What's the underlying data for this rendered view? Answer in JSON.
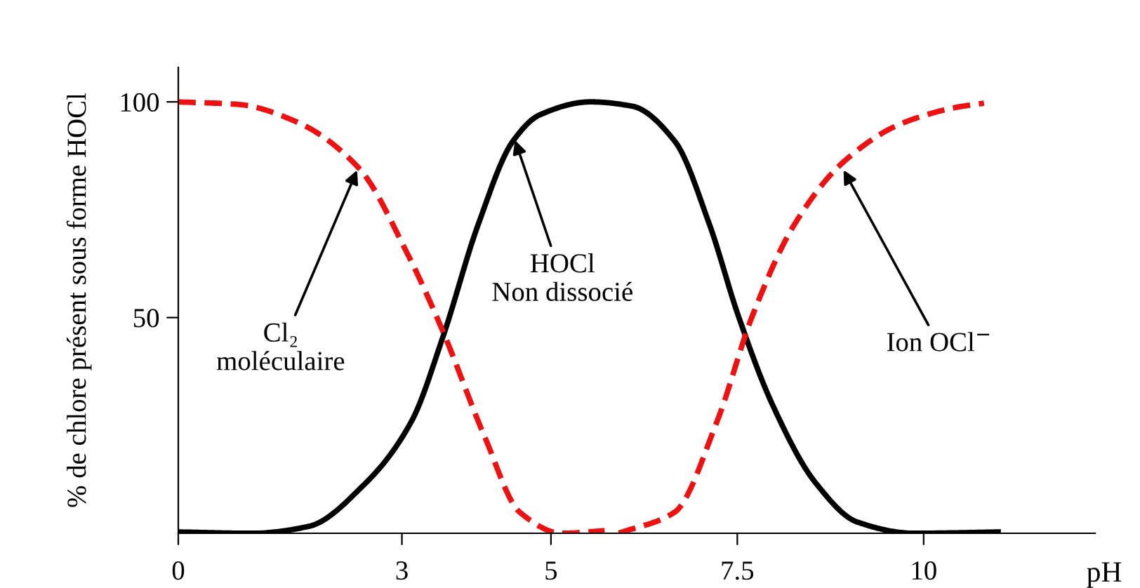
{
  "chart_data": {
    "type": "line",
    "xlabel": "pH",
    "ylabel": "% de chlore présent sous forme HOCl",
    "series": [
      {
        "color": "#000000",
        "line_style": "solid",
        "x": [
          0,
          1.0,
          1.75,
          2.5,
          3.13,
          3.55,
          4.02,
          4.49,
          4.85,
          5.53,
          6.09,
          6.66,
          7.13,
          7.51,
          7.98,
          8.55,
          9.11,
          9.87,
          11.0
        ],
        "values": [
          0.3,
          0,
          1.6,
          11.4,
          26,
          45.5,
          71.4,
          90.9,
          97,
          100,
          99,
          90.9,
          71.4,
          50.6,
          29.5,
          11.7,
          2.6,
          0,
          0.3
        ]
      },
      {
        "color": "#ee1111",
        "line_style": "dashed",
        "x": [
          0,
          0.81,
          1.57,
          2.42,
          3.08,
          3.55,
          4.11,
          4.58,
          5.15,
          5.72
        ],
        "values": [
          100,
          99.4,
          95.5,
          84.7,
          64.6,
          46.8,
          22.4,
          4.9,
          0,
          0.6
        ]
      },
      {
        "color": "#ee1111",
        "line_style": "dashed",
        "x": [
          5.91,
          6.66,
          7.23,
          7.7,
          8.26,
          8.92,
          9.68,
          10.43,
          10.81
        ],
        "values": [
          0,
          4.9,
          26,
          50.3,
          71.4,
          86,
          94.8,
          98.7,
          99.7
        ]
      }
    ],
    "annotations": [
      {
        "text": "Cl₂\nmoléculaire",
        "x": 2.42,
        "y": 85
      },
      {
        "text": "HOCl\nNon dissocié",
        "x": 4.5,
        "y": 92
      },
      {
        "text": "Ion OCl$^{−}$",
        "x": 8.9,
        "y": 85
      }
    ],
    "xlim": [
      0,
      12.3
    ],
    "xticks": [
      0,
      3,
      5,
      7.5,
      10
    ],
    "ylim": [
      0,
      108
    ],
    "yticks": [
      50,
      100
    ],
    "grid": false,
    "legend": false
  }
}
